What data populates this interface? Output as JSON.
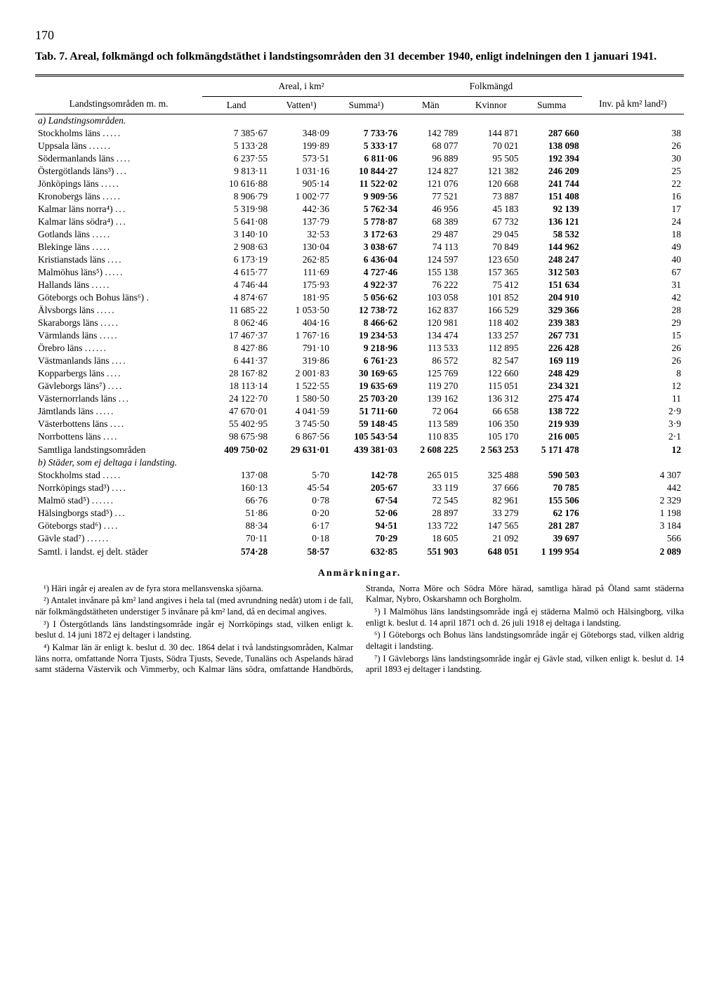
{
  "page_number": "170",
  "title_tab": "Tab. 7.",
  "title_rest": "Areal, folkmängd och folkmängdstäthet i landstingsområden den 31 december 1940, enligt indelningen den 1 januari 1941.",
  "headers": {
    "region": "Landstingsområden m. m.",
    "areal": "Areal, i km²",
    "folkmangd": "Folkmängd",
    "inv": "Inv. på km² land²)",
    "land": "Land",
    "vatten": "Vatten¹)",
    "summa1": "Summa¹)",
    "man": "Män",
    "kvinnor": "Kvinnor",
    "summa2": "Summa"
  },
  "section_a": "a) Landstingsområden.",
  "rows_a": [
    {
      "label": "Stockholms läns",
      "land": "7 385·67",
      "vatten": "348·09",
      "summa1": "7 733·76",
      "man": "142 789",
      "kvin": "144 871",
      "summa2": "287 660",
      "inv": "38"
    },
    {
      "label": "Uppsala läns",
      "land": "5 133·28",
      "vatten": "199·89",
      "summa1": "5 333·17",
      "man": "68 077",
      "kvin": "70 021",
      "summa2": "138 098",
      "inv": "26"
    },
    {
      "label": "Södermanlands läns",
      "land": "6 237·55",
      "vatten": "573·51",
      "summa1": "6 811·06",
      "man": "96 889",
      "kvin": "95 505",
      "summa2": "192 394",
      "inv": "30"
    },
    {
      "label": "Östergötlands läns³)",
      "land": "9 813·11",
      "vatten": "1 031·16",
      "summa1": "10 844·27",
      "man": "124 827",
      "kvin": "121 382",
      "summa2": "246 209",
      "inv": "25"
    },
    {
      "label": "Jönköpings läns",
      "land": "10 616·88",
      "vatten": "905·14",
      "summa1": "11 522·02",
      "man": "121 076",
      "kvin": "120 668",
      "summa2": "241 744",
      "inv": "22"
    },
    {
      "label": "Kronobergs läns",
      "land": "8 906·79",
      "vatten": "1 002·77",
      "summa1": "9 909·56",
      "man": "77 521",
      "kvin": "73 887",
      "summa2": "151 408",
      "inv": "16"
    },
    {
      "label": "Kalmar läns norra⁴)",
      "land": "5 319·98",
      "vatten": "442·36",
      "summa1": "5 762·34",
      "man": "46 956",
      "kvin": "45 183",
      "summa2": "92 139",
      "inv": "17"
    },
    {
      "label": "Kalmar läns södra⁴)",
      "land": "5 641·08",
      "vatten": "137·79",
      "summa1": "5 778·87",
      "man": "68 389",
      "kvin": "67 732",
      "summa2": "136 121",
      "inv": "24"
    },
    {
      "label": "Gotlands läns",
      "land": "3 140·10",
      "vatten": "32·53",
      "summa1": "3 172·63",
      "man": "29 487",
      "kvin": "29 045",
      "summa2": "58 532",
      "inv": "18"
    },
    {
      "label": "Blekinge läns",
      "land": "2 908·63",
      "vatten": "130·04",
      "summa1": "3 038·67",
      "man": "74 113",
      "kvin": "70 849",
      "summa2": "144 962",
      "inv": "49"
    },
    {
      "label": "Kristianstads läns",
      "land": "6 173·19",
      "vatten": "262·85",
      "summa1": "6 436·04",
      "man": "124 597",
      "kvin": "123 650",
      "summa2": "248 247",
      "inv": "40"
    },
    {
      "label": "Malmöhus läns⁵)",
      "land": "4 615·77",
      "vatten": "111·69",
      "summa1": "4 727·46",
      "man": "155 138",
      "kvin": "157 365",
      "summa2": "312 503",
      "inv": "67"
    },
    {
      "label": "Hallands läns",
      "land": "4 746·44",
      "vatten": "175·93",
      "summa1": "4 922·37",
      "man": "76 222",
      "kvin": "75 412",
      "summa2": "151 634",
      "inv": "31"
    },
    {
      "label": "Göteborgs och Bohus läns⁶)",
      "land": "4 874·67",
      "vatten": "181·95",
      "summa1": "5 056·62",
      "man": "103 058",
      "kvin": "101 852",
      "summa2": "204 910",
      "inv": "42"
    },
    {
      "label": "Älvsborgs läns",
      "land": "11 685·22",
      "vatten": "1 053·50",
      "summa1": "12 738·72",
      "man": "162 837",
      "kvin": "166 529",
      "summa2": "329 366",
      "inv": "28"
    },
    {
      "label": "Skaraborgs läns",
      "land": "8 062·46",
      "vatten": "404·16",
      "summa1": "8 466·62",
      "man": "120 981",
      "kvin": "118 402",
      "summa2": "239 383",
      "inv": "29"
    },
    {
      "label": "Värmlands läns",
      "land": "17 467·37",
      "vatten": "1 767·16",
      "summa1": "19 234·53",
      "man": "134 474",
      "kvin": "133 257",
      "summa2": "267 731",
      "inv": "15"
    },
    {
      "label": "Örebro läns",
      "land": "8 427·86",
      "vatten": "791·10",
      "summa1": "9 218·96",
      "man": "113 533",
      "kvin": "112 895",
      "summa2": "226 428",
      "inv": "26"
    },
    {
      "label": "Västmanlands läns",
      "land": "6 441·37",
      "vatten": "319·86",
      "summa1": "6 761·23",
      "man": "86 572",
      "kvin": "82 547",
      "summa2": "169 119",
      "inv": "26"
    },
    {
      "label": "Kopparbergs läns",
      "land": "28 167·82",
      "vatten": "2 001·83",
      "summa1": "30 169·65",
      "man": "125 769",
      "kvin": "122 660",
      "summa2": "248 429",
      "inv": "8"
    },
    {
      "label": "Gävleborgs läns⁷)",
      "land": "18 113·14",
      "vatten": "1 522·55",
      "summa1": "19 635·69",
      "man": "119 270",
      "kvin": "115 051",
      "summa2": "234 321",
      "inv": "12"
    },
    {
      "label": "Västernorrlands läns",
      "land": "24 122·70",
      "vatten": "1 580·50",
      "summa1": "25 703·20",
      "man": "139 162",
      "kvin": "136 312",
      "summa2": "275 474",
      "inv": "11"
    },
    {
      "label": "Jämtlands läns",
      "land": "47 670·01",
      "vatten": "4 041·59",
      "summa1": "51 711·60",
      "man": "72 064",
      "kvin": "66 658",
      "summa2": "138 722",
      "inv": "2·9"
    },
    {
      "label": "Västerbottens läns",
      "land": "55 402·95",
      "vatten": "3 745·50",
      "summa1": "59 148·45",
      "man": "113 589",
      "kvin": "106 350",
      "summa2": "219 939",
      "inv": "3·9"
    },
    {
      "label": "Norrbottens läns",
      "land": "98 675·98",
      "vatten": "6 867·56",
      "summa1": "105 543·54",
      "man": "110 835",
      "kvin": "105 170",
      "summa2": "216 005",
      "inv": "2·1"
    }
  ],
  "total_a": {
    "label": "Samtliga landstingsområden",
    "land": "409 750·02",
    "vatten": "29 631·01",
    "summa1": "439 381·03",
    "man": "2 608 225",
    "kvin": "2 563 253",
    "summa2": "5 171 478",
    "inv": "12"
  },
  "section_b": "b) Städer, som ej deltaga i landsting.",
  "rows_b": [
    {
      "label": "Stockholms stad",
      "land": "137·08",
      "vatten": "5·70",
      "summa1": "142·78",
      "man": "265 015",
      "kvin": "325 488",
      "summa2": "590 503",
      "inv": "4 307"
    },
    {
      "label": "Norrköpings stad³)",
      "land": "160·13",
      "vatten": "45·54",
      "summa1": "205·67",
      "man": "33 119",
      "kvin": "37 666",
      "summa2": "70 785",
      "inv": "442"
    },
    {
      "label": "Malmö stad⁵)",
      "land": "66·76",
      "vatten": "0·78",
      "summa1": "67·54",
      "man": "72 545",
      "kvin": "82 961",
      "summa2": "155 506",
      "inv": "2 329"
    },
    {
      "label": "Hälsingborgs stad⁵)",
      "land": "51·86",
      "vatten": "0·20",
      "summa1": "52·06",
      "man": "28 897",
      "kvin": "33 279",
      "summa2": "62 176",
      "inv": "1 198"
    },
    {
      "label": "Göteborgs stad⁶)",
      "land": "88·34",
      "vatten": "6·17",
      "summa1": "94·51",
      "man": "133 722",
      "kvin": "147 565",
      "summa2": "281 287",
      "inv": "3 184"
    },
    {
      "label": "Gävle stad⁷)",
      "land": "70·11",
      "vatten": "0·18",
      "summa1": "70·29",
      "man": "18 605",
      "kvin": "21 092",
      "summa2": "39 697",
      "inv": "566"
    }
  ],
  "total_b": {
    "label": "Samtl. i landst. ej delt. städer",
    "land": "574·28",
    "vatten": "58·57",
    "summa1": "632·85",
    "man": "551 903",
    "kvin": "648 051",
    "summa2": "1 199 954",
    "inv": "2 089"
  },
  "remarks_title": "Anmärkningar.",
  "remarks": [
    "¹) Häri ingår ej arealen av de fyra stora mellansvenska sjöarna.",
    "²) Antalet invånare på km² land angives i hela tal (med avrundning nedåt) utom i de fall, när folkmängdstätheten understiger 5 invånare på km² land, då en decimal angives.",
    "³) I Östergötlands läns landstingsområde ingår ej Norrköpings stad, vilken enligt k. beslut d. 14 juni 1872 ej deltager i landsting.",
    "⁴) Kalmar län är enligt k. beslut d. 30 dec. 1864 delat i två landstingsområden, Kalmar läns norra, omfattande Norra Tjusts, Södra Tjusts, Sevede, Tunaläns och Aspelands härad samt städerna Västervik och Vimmerby, och Kalmar läns södra, omfattande Handbörds, Stranda, Norra Möre och Södra Möre härad, samtliga härad på Öland samt städerna Kalmar, Nybro, Oskarshamn och Borgholm.",
    "⁵) I Malmöhus läns landstingsområde ingå ej städerna Malmö och Hälsingborg, vilka enligt k. beslut d. 14 april 1871 och d. 26 juli 1918 ej deltaga i landsting.",
    "⁶) I Göteborgs och Bohus läns landstingsområde ingår ej Göteborgs stad, vilken aldrig deltagit i landsting.",
    "⁷) I Gävleborgs läns landstingsområde ingår ej Gävle stad, vilken enligt k. beslut d. 14 april 1893 ej deltager i landsting."
  ]
}
